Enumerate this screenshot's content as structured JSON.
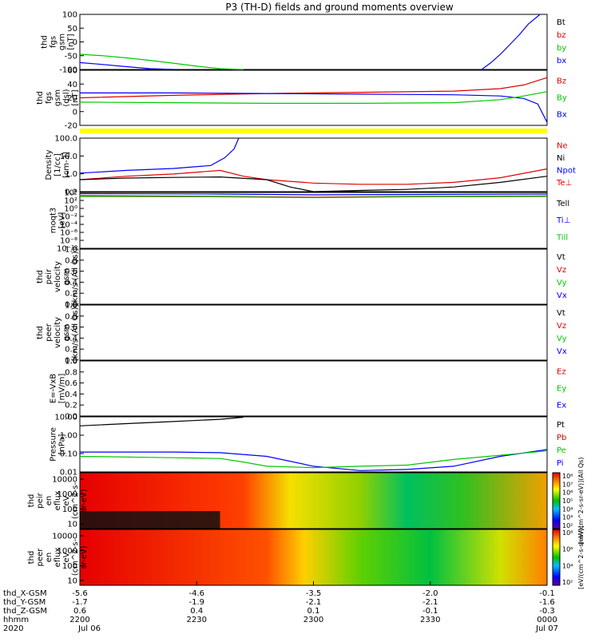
{
  "title": "P3 (TH-D) fields and ground moments overview",
  "colors": {
    "black": "#000000",
    "red": "#e00000",
    "green": "#00c800",
    "blue": "#0000ff",
    "yellow": "#ffff00"
  },
  "chart_data": {
    "type": "line",
    "x_ticks": [
      "2200",
      "2230",
      "2300",
      "2330",
      "0000"
    ],
    "panels": [
      {
        "id": "fgs-gsm",
        "ylabel": [
          "thd",
          "fgs",
          "gsm",
          "[nT]"
        ],
        "yticks": [
          "100",
          "50",
          "0",
          "-50",
          "-100"
        ],
        "ylim": [
          -100,
          100
        ],
        "legend": [
          {
            "text": "Bt",
            "color": "black"
          },
          {
            "text": "bz",
            "color": "red"
          },
          {
            "text": "by",
            "color": "green"
          },
          {
            "text": "bx",
            "color": "blue"
          }
        ],
        "series": [
          {
            "color": "green",
            "x": [
              0,
              0.05,
              0.1,
              0.15,
              0.2,
              0.25,
              0.3,
              0.35
            ],
            "y": [
              -45,
              -50,
              -58,
              -67,
              -77,
              -88,
              -97,
              -105
            ]
          },
          {
            "color": "blue",
            "x": [
              0,
              0.05,
              0.1,
              0.15,
              0.2
            ],
            "y": [
              -75,
              -82,
              -90,
              -97,
              -105
            ]
          },
          {
            "color": "blue",
            "x": [
              0.86,
              0.88,
              0.9,
              0.92,
              0.94,
              0.96,
              0.985
            ],
            "y": [
              -105,
              -75,
              -45,
              -10,
              25,
              65,
              105
            ]
          }
        ]
      },
      {
        "id": "fgs-dsl",
        "ylabel": [
          "thd",
          "fgs",
          "gsm",
          "(dsl)",
          "[nT]"
        ],
        "yticks": [
          "60",
          "40",
          "20",
          "0",
          "-20"
        ],
        "ylim": [
          -30,
          60
        ],
        "legend": [
          {
            "text": "Bz",
            "color": "red"
          },
          {
            "text": "By",
            "color": "green"
          },
          {
            "text": "Bx",
            "color": "blue"
          }
        ],
        "band": "yellow",
        "series": [
          {
            "color": "red",
            "x": [
              0,
              0.2,
              0.4,
              0.6,
              0.8,
              0.9,
              0.95,
              1.0
            ],
            "y": [
              15,
              19,
              22,
              24,
              26,
              30,
              36,
              48
            ]
          },
          {
            "color": "blue",
            "x": [
              0,
              0.2,
              0.4,
              0.6,
              0.8,
              0.9,
              0.95,
              0.98,
              1.0
            ],
            "y": [
              23,
              23,
              22,
              21,
              20,
              18,
              14,
              5,
              -25
            ]
          },
          {
            "color": "green",
            "x": [
              0,
              0.2,
              0.4,
              0.6,
              0.8,
              0.9,
              0.95,
              1.0
            ],
            "y": [
              8,
              7,
              6,
              6,
              7,
              12,
              18,
              25
            ]
          }
        ]
      },
      {
        "id": "density",
        "ylabel": [
          "Density",
          "[1/cc]",
          "[cm-3]"
        ],
        "yticks": [
          "100.0",
          "10.0",
          "1.0",
          "0.1"
        ],
        "ylim": [
          0.05,
          150
        ],
        "log": true,
        "legend": [
          {
            "text": "Ne",
            "color": "red"
          },
          {
            "text": "Ni",
            "color": "black"
          },
          {
            "text": "Npot",
            "color": "blue"
          },
          {
            "text": "Te⊥",
            "color": "red"
          }
        ],
        "series": [
          {
            "color": "blue",
            "x": [
              0,
              0.1,
              0.2,
              0.28,
              0.31,
              0.33,
              0.34
            ],
            "y": [
              0.8,
              1.2,
              1.6,
              2.5,
              8,
              30,
              150
            ]
          },
          {
            "color": "red",
            "x": [
              0,
              0.1,
              0.2,
              0.3,
              0.35,
              0.4,
              0.5,
              0.6,
              0.7,
              0.8,
              0.9,
              1.0
            ],
            "y": [
              0.3,
              0.5,
              0.7,
              1.2,
              0.5,
              0.3,
              0.18,
              0.15,
              0.15,
              0.2,
              0.4,
              1.5
            ]
          },
          {
            "color": "black",
            "x": [
              0,
              0.1,
              0.2,
              0.3,
              0.4,
              0.45,
              0.5,
              0.6,
              0.7,
              0.8,
              0.9,
              1.0
            ],
            "y": [
              0.3,
              0.38,
              0.42,
              0.45,
              0.3,
              0.1,
              0.05,
              0.06,
              0.07,
              0.1,
              0.2,
              0.5
            ]
          }
        ]
      },
      {
        "id": "moqt3",
        "ylabel": [
          "moqt3",
          "[eV]"
        ],
        "yticks": [
          "10⁴",
          "10²",
          "10⁰",
          "10⁻²",
          "10⁻⁴",
          "10⁻⁶",
          "10⁻⁸",
          "10⁻¹⁰"
        ],
        "ylim": [
          -10,
          4
        ],
        "legend": [
          {
            "text": "Tell",
            "color": "black"
          },
          {
            "text": "Ti⊥",
            "color": "blue"
          },
          {
            "text": "Till",
            "color": "green"
          }
        ],
        "series": [
          {
            "color": "blue",
            "x": [
              0,
              0.3,
              0.5,
              0.7,
              1.0
            ],
            "y": [
              3.7,
              3.6,
              3.4,
              3.5,
              3.6
            ]
          },
          {
            "color": "red",
            "x": [
              0,
              0.3,
              0.5,
              0.7,
              1.0
            ],
            "y": [
              3.2,
              3.0,
              2.8,
              3.0,
              3.1
            ]
          },
          {
            "color": "green",
            "x": [
              0,
              0.3,
              0.5,
              0.7,
              1.0
            ],
            "y": [
              3.0,
              2.9,
              2.7,
              2.9,
              3.0
            ]
          }
        ]
      },
      {
        "id": "peir",
        "ylabel": [
          "thd",
          "peir",
          "velocity",
          "gsm",
          "[km/s (All Qs)]"
        ],
        "yticks": [
          "1.0",
          "0.8",
          "0.6",
          "0.4",
          "0.2",
          "0.0"
        ],
        "ylim": [
          0,
          1
        ],
        "legend": [
          {
            "text": "Vt",
            "color": "black"
          },
          {
            "text": "Vz",
            "color": "red"
          },
          {
            "text": "Vy",
            "color": "green"
          },
          {
            "text": "Vx",
            "color": "blue"
          }
        ],
        "series": []
      },
      {
        "id": "peer",
        "ylabel": [
          "thd",
          "peer",
          "velocity",
          "gsm",
          "[km/s (All Qs)]"
        ],
        "yticks": [
          "1.0",
          "0.8",
          "0.6",
          "0.4",
          "0.2",
          "0.0"
        ],
        "ylim": [
          0,
          1
        ],
        "legend": [
          {
            "text": "Vt",
            "color": "black"
          },
          {
            "text": "Vz",
            "color": "red"
          },
          {
            "text": "Vy",
            "color": "green"
          },
          {
            "text": "Vx",
            "color": "blue"
          }
        ],
        "series": []
      },
      {
        "id": "efield",
        "ylabel": [
          "E=-VxB",
          "[mV/m]"
        ],
        "yticks": [
          "1.0",
          "0.8",
          "0.6",
          "0.4",
          "0.2",
          "0.0"
        ],
        "ylim": [
          0,
          1
        ],
        "legend": [
          {
            "text": "Ez",
            "color": "red"
          },
          {
            "text": "Ey",
            "color": "green"
          },
          {
            "text": "Ex",
            "color": "blue"
          }
        ],
        "series": []
      },
      {
        "id": "pressure",
        "ylabel": [
          "Pressure",
          "[nPa]"
        ],
        "yticks": [
          "10.00",
          "1.00",
          "0.10",
          "0.01"
        ],
        "ylim": [
          0.004,
          30
        ],
        "log": true,
        "legend": [
          {
            "text": "Pt",
            "color": "black"
          },
          {
            "text": "Pb",
            "color": "red"
          },
          {
            "text": "Pe",
            "color": "green"
          },
          {
            "text": "Pi",
            "color": "blue"
          }
        ],
        "series": [
          {
            "color": "black",
            "x": [
              0,
              0.1,
              0.2,
              0.3,
              0.35
            ],
            "y": [
              7,
              10,
              14,
              20,
              28
            ]
          },
          {
            "color": "blue",
            "x": [
              0,
              0.2,
              0.3,
              0.4,
              0.5,
              0.6,
              0.7,
              0.8,
              0.9,
              1.0
            ],
            "y": [
              0.1,
              0.1,
              0.09,
              0.05,
              0.01,
              0.005,
              0.006,
              0.01,
              0.05,
              0.15
            ]
          },
          {
            "color": "green",
            "x": [
              0,
              0.2,
              0.3,
              0.35,
              0.4,
              0.5,
              0.6,
              0.7,
              0.8,
              0.9,
              1.0
            ],
            "y": [
              0.05,
              0.04,
              0.035,
              0.02,
              0.01,
              0.008,
              0.01,
              0.012,
              0.03,
              0.06,
              0.12
            ]
          }
        ]
      }
    ],
    "spectrograms": [
      {
        "id": "peir-en",
        "ylabel": [
          "thd",
          "peir",
          "en",
          "eflux",
          "eV",
          "(cm^2-s-",
          "sr-eV)"
        ],
        "yticks": [
          "10000",
          "1000",
          "100",
          "10"
        ],
        "colorbar_ticks": [
          "10⁸",
          "10⁷",
          "10⁶",
          "10⁵",
          "10⁴",
          "10³",
          "10²"
        ],
        "colorbar_label": "[eV/(cm^2-s-sr-eV)](All Qs)"
      },
      {
        "id": "peer-en",
        "ylabel": [
          "thd",
          "peer",
          "en",
          "eflux",
          "eV",
          "(cm^2-s-",
          "sr-eV)"
        ],
        "yticks": [
          "10000",
          "1000",
          "100",
          "10"
        ],
        "colorbar_ticks": [
          "10⁸",
          "10⁶",
          "10⁴",
          "10²"
        ],
        "colorbar_label": "[eV/(cm^2-s-sr-eV)]"
      }
    ],
    "ephemeris": {
      "rows": [
        {
          "label": "thd_X-GSM",
          "values": [
            "-5.6",
            "-4.6",
            "-3.5",
            "-2.0",
            "-0.1"
          ]
        },
        {
          "label": "thd_Y-GSM",
          "values": [
            "-1.7",
            "-1.9",
            "-2.1",
            "-2.1",
            "-1.6"
          ]
        },
        {
          "label": "thd_Z-GSM",
          "values": [
            "0.6",
            "0.4",
            "0.1",
            "-0.1",
            "-0.3"
          ]
        },
        {
          "label": "hhmm",
          "values": [
            "2200",
            "2230",
            "2300",
            "2330",
            "0000"
          ]
        }
      ],
      "year": "2020",
      "dates": [
        "Jul 06",
        "Jul 07"
      ]
    }
  }
}
